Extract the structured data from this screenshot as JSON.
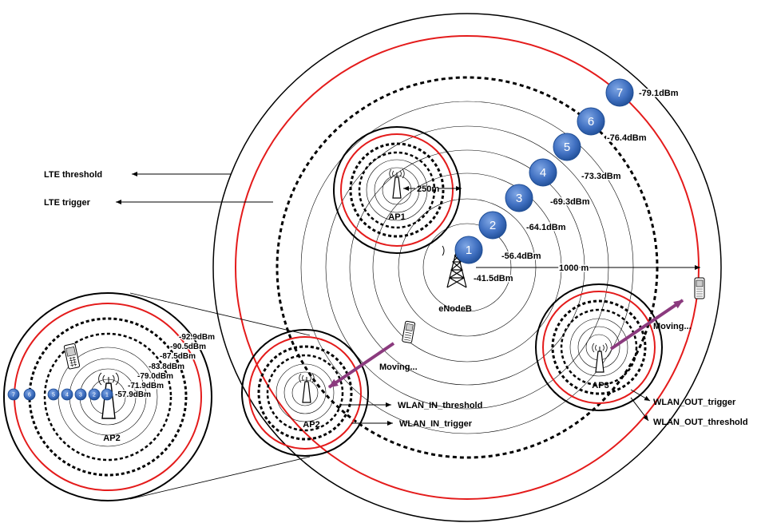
{
  "labels": {
    "lte_threshold": "LTE threshold",
    "lte_trigger": "LTE trigger",
    "wlan_in_threshold": "WLAN_IN_threshold",
    "wlan_in_trigger": "WLAN_IN_trigger",
    "wlan_out_trigger": "WLAN_OUT_trigger",
    "wlan_out_threshold": "WLAN_OUT_threshold",
    "enodeb": "eNodeB",
    "ap1": "AP1",
    "ap2": "AP2",
    "ap3": "AP3",
    "ap2_zoom": "AP2",
    "moving_1": "Moving...",
    "moving_2": "Moving...",
    "dist_250": "250m",
    "dist_1000": "1000 m"
  },
  "lte_points": [
    {
      "n": "1",
      "rssi": "-41.5dBm"
    },
    {
      "n": "2",
      "rssi": "-56.4dBm"
    },
    {
      "n": "3",
      "rssi": "-64.1dBm"
    },
    {
      "n": "4",
      "rssi": "-69.3dBm"
    },
    {
      "n": "5",
      "rssi": "-73.3dBm"
    },
    {
      "n": "6",
      "rssi": "-76.4dBm"
    },
    {
      "n": "7",
      "rssi": "-79.1dBm"
    }
  ],
  "wlan_points": [
    {
      "n": "1",
      "rssi": "-57.9dBm"
    },
    {
      "n": "2",
      "rssi": "-71.9dBm"
    },
    {
      "n": "3",
      "rssi": "-79.0dBm"
    },
    {
      "n": "4",
      "rssi": "-83.8dBm"
    },
    {
      "n": "5",
      "rssi": "-87.5dBm"
    },
    {
      "n": "6",
      "rssi": "-90.5dBm"
    },
    {
      "n": "7",
      "rssi": "-92.9dBm"
    }
  ],
  "colors": {
    "red_ring": "#e41b1b",
    "black_ring": "#000000",
    "badge_fill": "#3f6fc0",
    "badge_dark": "#1f4d94",
    "move_arrow": "#8b3a7e"
  },
  "icons": [
    "antenna-icon",
    "tower-icon",
    "phone-icon",
    "arrow-icon"
  ]
}
